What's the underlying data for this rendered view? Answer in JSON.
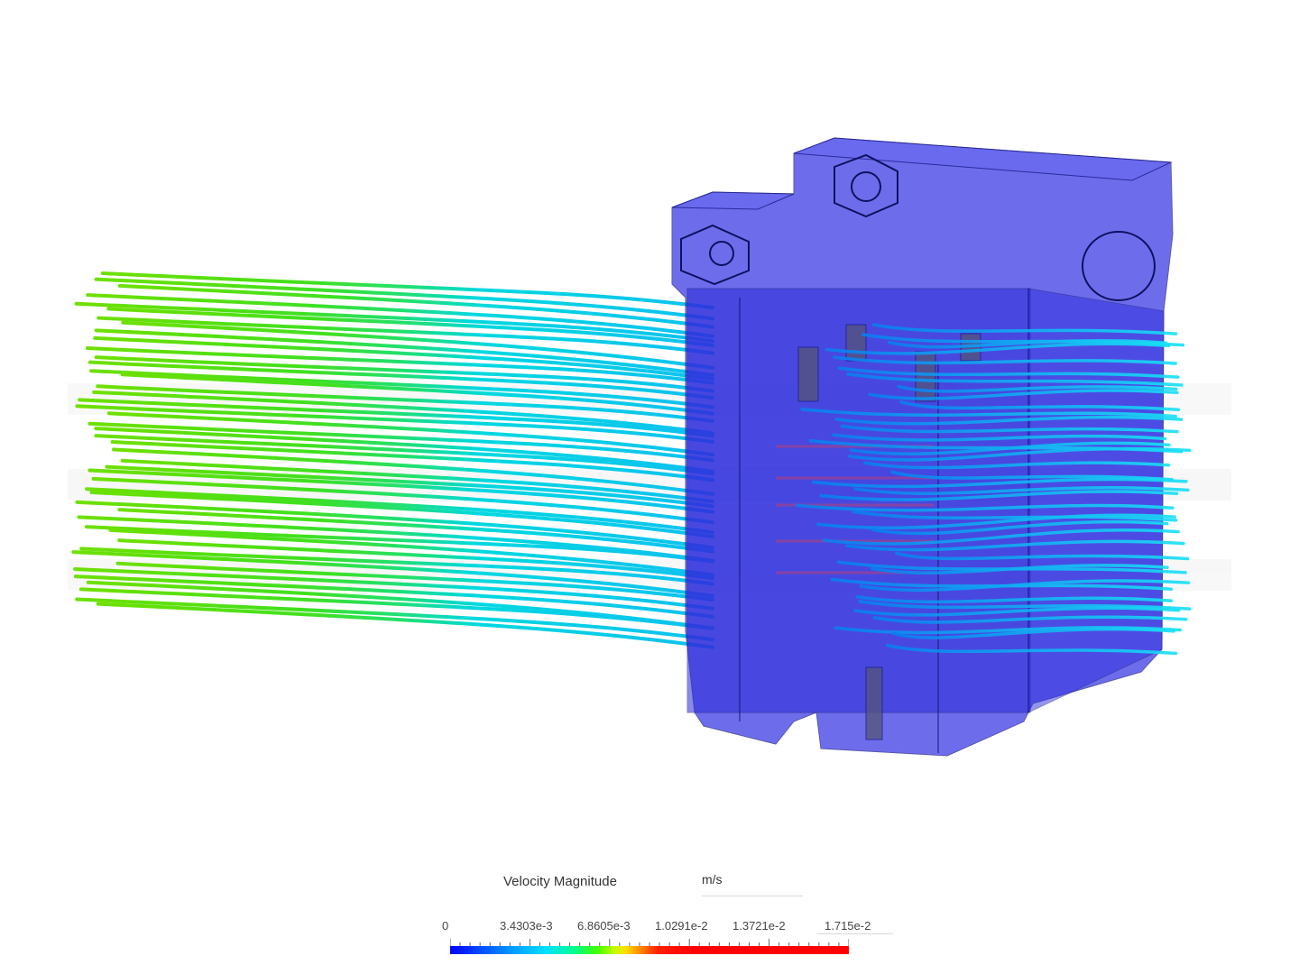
{
  "app": {
    "view": "3D simulation result viewport",
    "background_color": "#ffffff"
  },
  "legend": {
    "title": "Velocity Magnitude",
    "unit": "m/s",
    "tick_labels": [
      "0",
      "3.4303e-3",
      "6.8605e-3",
      "1.0291e-2",
      "1.3721e-2",
      "1.715e-2"
    ],
    "min": 0,
    "max": 0.01715,
    "colormap": [
      "#0000ff",
      "#00a0ff",
      "#00e0ff",
      "#00ff90",
      "#40ff00",
      "#c0ff00",
      "#ffe000",
      "#ff8000",
      "#ff0000"
    ]
  },
  "model": {
    "body_color": "#3838e8",
    "streamline_inlet_color": "#44dd22",
    "streamline_outlet_color": "#22ccee"
  }
}
